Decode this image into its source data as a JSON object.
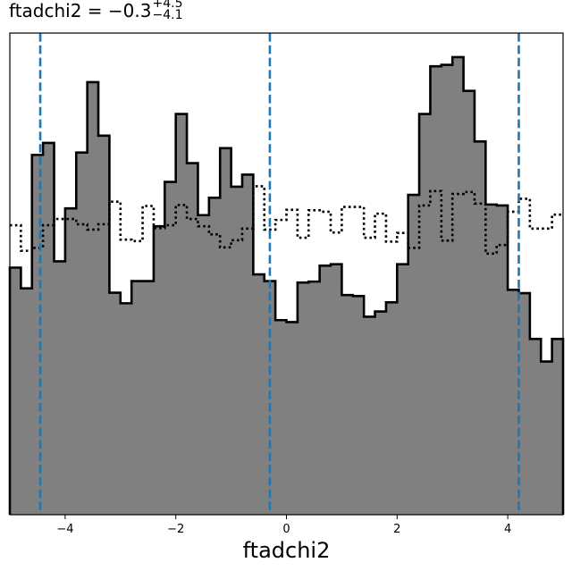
{
  "title": {
    "prefix": "ftadchi2 = −0.3",
    "sup": "+4.5",
    "sub": "−4.1"
  },
  "chart_data": {
    "type": "histogram",
    "title": "ftadchi2 = −0.3 (+4.5 / −4.1)",
    "xlabel": "ftadchi2",
    "ylabel": "",
    "xlim": [
      -5.0,
      5.0
    ],
    "ylim": [
      0,
      1.0
    ],
    "x_ticks": [
      -4,
      -2,
      0,
      2,
      4
    ],
    "x_tick_labels": [
      "−4",
      "−2",
      "0",
      "2",
      "4"
    ],
    "bin_edges": [
      -5.0,
      -4.8,
      -4.6,
      -4.4,
      -4.2,
      -4.0,
      -3.8,
      -3.6,
      -3.4,
      -3.2,
      -3.0,
      -2.8,
      -2.6,
      -2.4,
      -2.2,
      -2.0,
      -1.8,
      -1.6,
      -1.4,
      -1.2,
      -1.0,
      -0.8,
      -0.6,
      -0.4,
      -0.2,
      0.0,
      0.2,
      0.4,
      0.6,
      0.8,
      1.0,
      1.2,
      1.4,
      1.6,
      1.8,
      2.0,
      2.2,
      2.4,
      2.6,
      2.8,
      3.0,
      3.2,
      3.4,
      3.6,
      3.8,
      4.0,
      4.2,
      4.4,
      4.6,
      4.8,
      5.0
    ],
    "series": [
      {
        "style": "filled-step",
        "fill": "#808080",
        "edge": "#000000",
        "values": [
          0.513,
          0.47,
          0.747,
          0.772,
          0.526,
          0.636,
          0.752,
          0.898,
          0.787,
          0.461,
          0.439,
          0.485,
          0.485,
          0.599,
          0.691,
          0.832,
          0.73,
          0.622,
          0.658,
          0.761,
          0.681,
          0.706,
          0.499,
          0.485,
          0.404,
          0.4,
          0.482,
          0.484,
          0.517,
          0.52,
          0.456,
          0.454,
          0.411,
          0.422,
          0.441,
          0.52,
          0.664,
          0.832,
          0.931,
          0.934,
          0.95,
          0.88,
          0.775,
          0.644,
          0.642,
          0.467,
          0.46,
          0.365,
          0.318,
          0.365
        ]
      },
      {
        "style": "dotted-step",
        "edge": "#000000",
        "values": [
          0.601,
          0.548,
          0.554,
          0.601,
          0.614,
          0.614,
          0.603,
          0.592,
          0.603,
          0.65,
          0.571,
          0.568,
          0.641,
          0.595,
          0.601,
          0.643,
          0.614,
          0.599,
          0.582,
          0.555,
          0.57,
          0.594,
          0.682,
          0.592,
          0.612,
          0.633,
          0.575,
          0.632,
          0.629,
          0.586,
          0.639,
          0.639,
          0.575,
          0.625,
          0.567,
          0.585,
          0.554,
          0.642,
          0.672,
          0.569,
          0.666,
          0.67,
          0.646,
          0.542,
          0.56,
          0.629,
          0.656,
          0.594,
          0.594,
          0.623
        ]
      }
    ],
    "vlines": [
      {
        "x": -4.45,
        "color": "#1f77b4",
        "style": "dashed"
      },
      {
        "x": -0.3,
        "color": "#1f77b4",
        "style": "dashed"
      },
      {
        "x": 4.2,
        "color": "#1f77b4",
        "style": "dashed"
      }
    ],
    "grid": false,
    "show_y_axis_labels": false
  }
}
